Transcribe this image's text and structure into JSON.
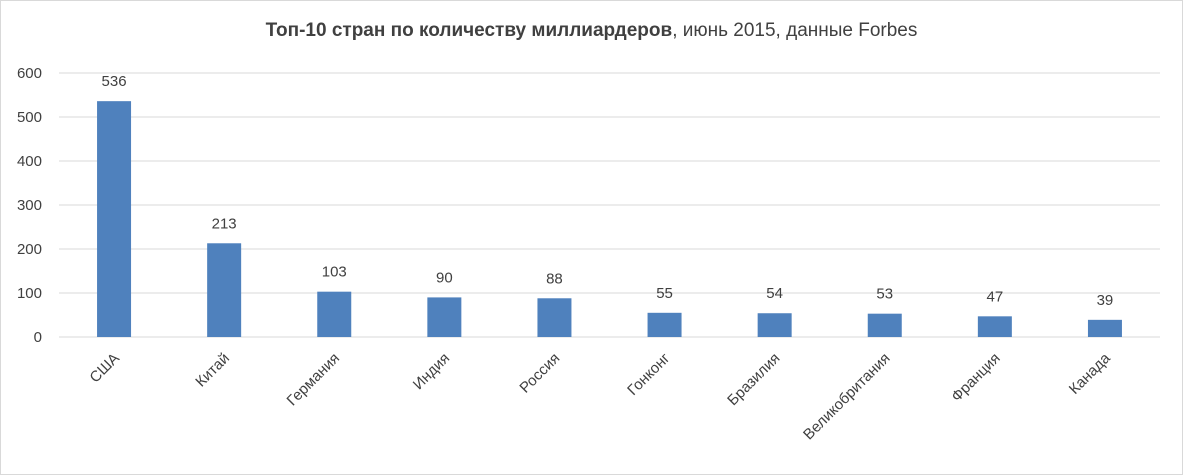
{
  "chart_data": {
    "type": "bar",
    "title": "Топ-10 стран по количеству миллиардеров",
    "subtitle": ", июнь 2015, данные Forbes",
    "categories": [
      "США",
      "Китай",
      "Германия",
      "Индия",
      "Россия",
      "Гонконг",
      "Бразилия",
      "Великобритания",
      "Франция",
      "Канада"
    ],
    "values": [
      536,
      213,
      103,
      90,
      88,
      55,
      54,
      53,
      47,
      39
    ],
    "data_labels": [
      "536",
      "213",
      "103",
      "90",
      "88",
      "55",
      "54",
      "53",
      "47",
      "39"
    ],
    "ylim": [
      0,
      600
    ],
    "yticks": [
      0,
      100,
      200,
      300,
      400,
      500,
      600
    ],
    "xlabel": "",
    "ylabel": "",
    "grid": true,
    "legend": "none",
    "bar_color": "#4f81bd",
    "grid_color": "#d9d9d9"
  }
}
